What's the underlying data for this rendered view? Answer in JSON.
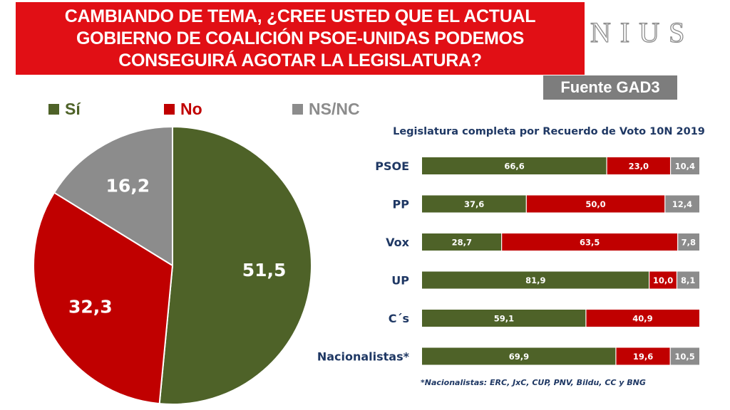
{
  "header": {
    "title": "CAMBIANDO DE TEMA, ¿CREE USTED QUE EL ACTUAL\nGOBIERNO DE COALICIÓN PSOE-UNIDAS PODEMOS\nCONSEGUIRÁ AGOTAR LA LEGISLATURA?",
    "brand": "NIUS",
    "source": "Fuente GAD3"
  },
  "colors": {
    "si": "#4e6228",
    "no": "#c00000",
    "nsnc": "#8c8c8c",
    "title_bg": "#e10f15",
    "navy": "#1f3864"
  },
  "footnote": "*Nacionalistas: ERC, JxC, CUP, PNV, Bildu, CC y BNG",
  "chart_data": [
    {
      "type": "pie",
      "legend": [
        "Sí",
        "No",
        "NS/NC"
      ],
      "labels": [
        "Sí",
        "No",
        "NS/NC"
      ],
      "values": [
        51.5,
        32.3,
        16.2
      ],
      "display_values": [
        "51,5",
        "32,3",
        "16,2"
      ],
      "legend_position": "top"
    },
    {
      "type": "bar",
      "orientation": "horizontal",
      "stacked": true,
      "title": "Legislatura completa por Recuerdo de Voto 10N 2019",
      "categories": [
        "PSOE",
        "PP",
        "Vox",
        "UP",
        "C´s",
        "Nacionalistas*"
      ],
      "series": [
        {
          "name": "Sí",
          "values": [
            66.6,
            37.6,
            28.7,
            81.9,
            59.1,
            69.9
          ],
          "labels": [
            "66,6",
            "37,6",
            "28,7",
            "81,9",
            "59,1",
            "69,9"
          ]
        },
        {
          "name": "No",
          "values": [
            23.0,
            50.0,
            63.5,
            10.0,
            40.9,
            19.6
          ],
          "labels": [
            "23,0",
            "50,0",
            "63,5",
            "10,0",
            "40,9",
            "19,6"
          ]
        },
        {
          "name": "NS/NC",
          "values": [
            10.4,
            12.4,
            7.8,
            8.1,
            0,
            10.5
          ],
          "labels": [
            "10,4",
            "12,4",
            "7,8",
            "8,1",
            "",
            "10,5"
          ]
        }
      ]
    }
  ]
}
